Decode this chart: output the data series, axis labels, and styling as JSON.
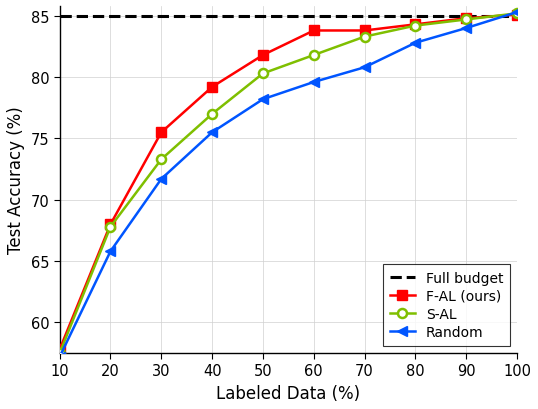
{
  "x": [
    10,
    20,
    30,
    40,
    50,
    60,
    70,
    80,
    90,
    100
  ],
  "fal": [
    57.8,
    68.0,
    75.5,
    79.2,
    81.8,
    83.8,
    83.8,
    84.3,
    84.8,
    85.1
  ],
  "sal": [
    57.5,
    67.8,
    73.3,
    77.0,
    80.3,
    81.8,
    83.3,
    84.2,
    84.7,
    85.2
  ],
  "random": [
    57.2,
    65.8,
    71.7,
    75.5,
    78.2,
    79.6,
    80.8,
    82.8,
    84.0,
    85.3
  ],
  "full_budget": 85.0,
  "fal_color": "#FF0000",
  "sal_color": "#7FBF00",
  "random_color": "#0055FF",
  "full_budget_color": "#000000",
  "xlabel": "Labeled Data (%)",
  "ylabel": "Test Accuracy (%)",
  "xlim": [
    10,
    100
  ],
  "ylim": [
    57.5,
    85.8
  ],
  "yticks": [
    60,
    65,
    70,
    75,
    80,
    85
  ],
  "xticks": [
    10,
    20,
    30,
    40,
    50,
    60,
    70,
    80,
    90,
    100
  ],
  "legend_labels": [
    "Full budget",
    "F-AL (ours)",
    "S-AL",
    "Random"
  ],
  "legend_loc": "lower right",
  "figsize": [
    5.38,
    4.1
  ],
  "dpi": 100
}
